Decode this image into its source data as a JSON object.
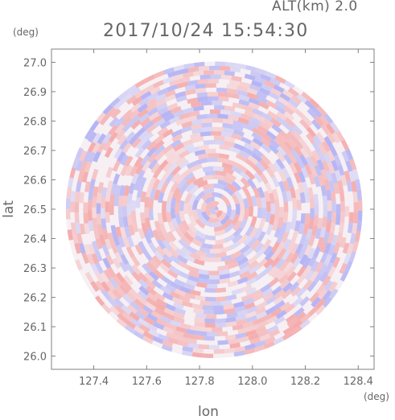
{
  "header": {
    "altitude_label": "ALT(km)  2.0",
    "timestamp": "2017/10/24  15:54:30"
  },
  "chart_data": {
    "type": "heatmap",
    "title": "2017/10/24  15:54:30",
    "subtitle": "ALT(km)  2.0",
    "xlabel": "lon",
    "ylabel": "lat",
    "x_unit": "(deg)",
    "y_unit": "(deg)",
    "xlim": [
      127.24,
      128.46
    ],
    "ylim": [
      25.955,
      27.045
    ],
    "x_ticks": [
      127.4,
      127.6,
      127.8,
      128.0,
      128.2,
      128.4
    ],
    "x_tick_labels": [
      "127.4",
      "127.6",
      "127.8",
      "128.0",
      "128.2",
      "128.4"
    ],
    "y_ticks": [
      26.0,
      26.1,
      26.2,
      26.3,
      26.4,
      26.5,
      26.6,
      26.7,
      26.8,
      26.9,
      27.0
    ],
    "y_tick_labels": [
      "26.0",
      "26.1",
      "26.2",
      "26.3",
      "26.4",
      "26.5",
      "26.6",
      "26.7",
      "26.8",
      "26.9",
      "27.0"
    ],
    "radar_center": [
      127.855,
      26.498
    ],
    "radar_range_deg_lat": 0.505,
    "grid": false,
    "colors": {
      "positive": "#f4a0a0",
      "negative": "#a8a8f4",
      "axis": "#808080",
      "text": "#666666"
    }
  }
}
